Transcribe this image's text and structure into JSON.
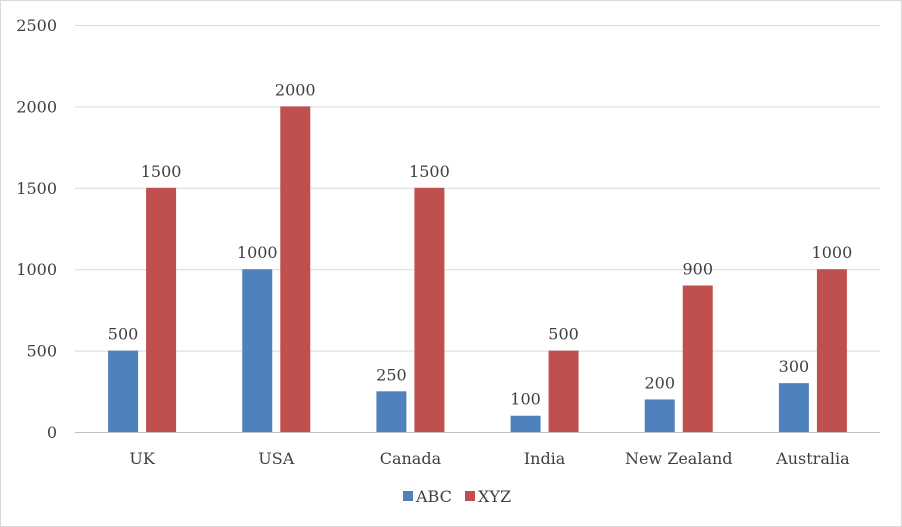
{
  "chart_data": {
    "type": "bar",
    "categories": [
      "UK",
      "USA",
      "Canada",
      "India",
      "New Zealand",
      "Australia"
    ],
    "series": [
      {
        "name": "ABC",
        "values": [
          500,
          1000,
          250,
          100,
          200,
          300
        ],
        "color": "#4f81bd"
      },
      {
        "name": "XYZ",
        "values": [
          1500,
          2000,
          1500,
          500,
          900,
          1000
        ],
        "color": "#c0504d"
      }
    ],
    "y_ticks": [
      "0",
      "500",
      "1000",
      "1500",
      "2000",
      "2500"
    ],
    "ylim": [
      0,
      2500
    ],
    "grid": true,
    "data_labels": true,
    "legend_position": "bottom"
  }
}
